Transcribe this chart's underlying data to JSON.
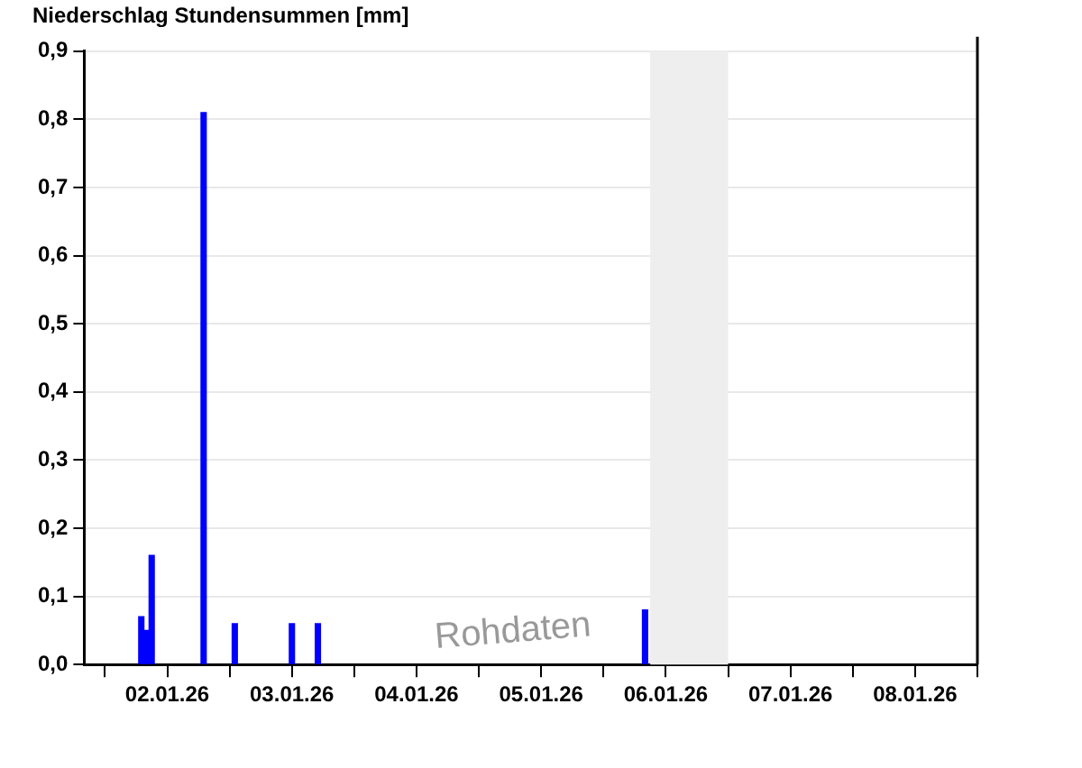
{
  "chart_data": {
    "type": "bar",
    "title": "Niederschlag Stundensummen [mm]",
    "x": [
      "--01-02T07:00",
      "--01-02T08:00",
      "--01-02T09:00",
      "--01-02T19:00",
      "--01-03T01:00",
      "--01-03T12:00",
      "--01-03T17:00",
      "--01-06T08:00"
    ],
    "values": [
      0.07,
      0.05,
      0.16,
      0.81,
      0.06,
      0.06,
      0.06,
      0.08
    ],
    "color": "#0000ff",
    "xlim": [
      "--01-01T20:00",
      "--01-09T00:00"
    ],
    "xticks": [
      {
        "value": "--01-02T00:00",
        "label": null
      },
      {
        "value": "--01-02T12:00",
        "label": "02.01.26"
      },
      {
        "value": "--01-03T00:00",
        "label": null
      },
      {
        "value": "--01-03T12:00",
        "label": "03.01.26"
      },
      {
        "value": "--01-04T00:00",
        "label": null
      },
      {
        "value": "--01-04T12:00",
        "label": "04.01.26"
      },
      {
        "value": "--01-05T00:00",
        "label": null
      },
      {
        "value": "--01-05T12:00",
        "label": "05.01.26"
      },
      {
        "value": "--01-06T00:00",
        "label": null
      },
      {
        "value": "--01-06T12:00",
        "label": "06.01.26"
      },
      {
        "value": "--01-07T00:00",
        "label": null
      },
      {
        "value": "--01-07T12:00",
        "label": "07.01.26"
      },
      {
        "value": "--01-08T00:00",
        "label": null
      },
      {
        "value": "--01-08T12:00",
        "label": "08.01.26"
      },
      {
        "value": "--01-09T00:00",
        "label": null
      }
    ],
    "ylim": [
      0,
      0.9
    ],
    "yticks": [
      {
        "value": 0,
        "label": "0,0"
      },
      {
        "value": 0.1,
        "label": "0,1"
      },
      {
        "value": 0.2,
        "label": "0,2"
      },
      {
        "value": 0.3,
        "label": "0,3"
      },
      {
        "value": 0.4,
        "label": "0,4"
      },
      {
        "value": 0.5,
        "label": "0,5"
      },
      {
        "value": 0.6,
        "label": "0,6"
      },
      {
        "value": 0.7,
        "label": "0,7"
      },
      {
        "value": 0.8,
        "label": "0,8"
      },
      {
        "value": 0.9,
        "label": "0,9"
      }
    ],
    "bands": [
      {
        "axis": "x",
        "from": "--01-06T09:00",
        "to": "--01-07T00:00",
        "color": "#eeeeee"
      }
    ],
    "annotations": [
      "Rohdaten"
    ],
    "grid": "y"
  }
}
